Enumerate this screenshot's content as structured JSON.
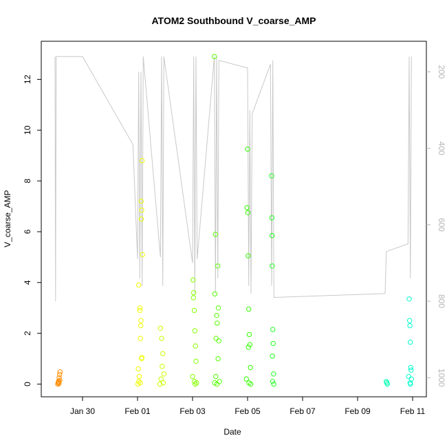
{
  "chart_data": {
    "type": "scatter",
    "title": "ATOM2 Southbound V_coarse_AMP",
    "xlabel": "Date",
    "ylabel": "V_coarse_AMP",
    "x_ticks": [
      "Jan 30",
      "Feb 01",
      "Feb 03",
      "Feb 05",
      "Feb 07",
      "Feb 09",
      "Feb 11"
    ],
    "y_ticks": [
      "0",
      "2",
      "4",
      "6",
      "8",
      "10",
      "12"
    ],
    "y2_ticks": [
      "200",
      "400",
      "600",
      "800",
      "1000"
    ],
    "grid": false,
    "colors": {
      "frame": "#000000",
      "secondary_line": "#c8c8c8",
      "secondary_axis": "#b5b5b5"
    },
    "series": [
      {
        "color": "#ff8c00",
        "points": [
          {
            "x": "2018-01-29T02:24",
            "y": 0.0
          },
          {
            "x": "2018-01-29T02:48",
            "y": 0.05
          },
          {
            "x": "2018-01-29T03:12",
            "y": 0.12
          },
          {
            "x": "2018-01-29T03:36",
            "y": 0.25
          },
          {
            "x": "2018-01-29T04:00",
            "y": 0.38
          },
          {
            "x": "2018-01-29T04:24",
            "y": 0.48
          },
          {
            "x": "2018-01-29T03:00",
            "y": 0.08
          },
          {
            "x": "2018-01-29T03:30",
            "y": 0.02
          },
          {
            "x": "2018-01-29T04:12",
            "y": 0.15
          }
        ]
      },
      {
        "color": "#eeff00",
        "points": [
          {
            "x": "2018-02-01T01:00",
            "y": 3.9
          },
          {
            "x": "2018-02-01T02:00",
            "y": 2.9
          },
          {
            "x": "2018-02-01T03:00",
            "y": 2.5
          },
          {
            "x": "2018-02-01T02:30",
            "y": 1.8
          },
          {
            "x": "2018-02-01T03:30",
            "y": 1.0
          },
          {
            "x": "2018-02-01T04:00",
            "y": 8.8
          },
          {
            "x": "2018-02-01T03:10",
            "y": 7.2
          },
          {
            "x": "2018-02-01T03:40",
            "y": 6.85
          },
          {
            "x": "2018-02-01T03:20",
            "y": 6.5
          },
          {
            "x": "2018-02-01T04:20",
            "y": 5.1
          },
          {
            "x": "2018-02-01T00:40",
            "y": 0.6
          },
          {
            "x": "2018-02-01T01:30",
            "y": 0.3
          },
          {
            "x": "2018-02-01T02:10",
            "y": 3.0
          },
          {
            "x": "2018-02-01T02:50",
            "y": 2.3
          },
          {
            "x": "2018-02-01T03:50",
            "y": 1.05
          },
          {
            "x": "2018-02-01T00:20",
            "y": 0.0
          },
          {
            "x": "2018-02-01T01:10",
            "y": 0.1
          },
          {
            "x": "2018-02-01T02:20",
            "y": 0.05
          }
        ]
      },
      {
        "color": "#c9ff00",
        "points": [
          {
            "x": "2018-02-01T20:00",
            "y": 2.2
          },
          {
            "x": "2018-02-01T21:00",
            "y": 1.8
          },
          {
            "x": "2018-02-01T22:00",
            "y": 1.2
          },
          {
            "x": "2018-02-01T21:30",
            "y": 0.7
          },
          {
            "x": "2018-02-01T20:30",
            "y": 0.2
          },
          {
            "x": "2018-02-01T22:30",
            "y": 0.05
          },
          {
            "x": "2018-02-01T19:30",
            "y": 0.0
          },
          {
            "x": "2018-02-01T23:00",
            "y": 0.4
          }
        ]
      },
      {
        "color": "#88ff00",
        "points": [
          {
            "x": "2018-02-03T00:30",
            "y": 4.1
          },
          {
            "x": "2018-02-03T01:00",
            "y": 3.6
          },
          {
            "x": "2018-02-03T01:30",
            "y": 2.9
          },
          {
            "x": "2018-02-03T02:00",
            "y": 2.1
          },
          {
            "x": "2018-02-03T02:30",
            "y": 1.5
          },
          {
            "x": "2018-02-03T03:00",
            "y": 0.9
          },
          {
            "x": "2018-02-03T00:00",
            "y": 0.3
          },
          {
            "x": "2018-02-03T01:45",
            "y": 0.1
          },
          {
            "x": "2018-02-03T02:15",
            "y": 0.0
          },
          {
            "x": "2018-02-03T03:30",
            "y": 0.05
          },
          {
            "x": "2018-02-03T00:45",
            "y": 3.4
          }
        ]
      },
      {
        "color": "#55ff00",
        "points": [
          {
            "x": "2018-02-03T19:00",
            "y": 12.9
          },
          {
            "x": "2018-02-03T20:00",
            "y": 5.9
          },
          {
            "x": "2018-02-03T22:00",
            "y": 4.65
          },
          {
            "x": "2018-02-03T19:30",
            "y": 3.55
          },
          {
            "x": "2018-02-03T22:30",
            "y": 3.0
          },
          {
            "x": "2018-02-03T21:00",
            "y": 2.7
          },
          {
            "x": "2018-02-03T21:30",
            "y": 2.4
          },
          {
            "x": "2018-02-03T20:30",
            "y": 1.8
          },
          {
            "x": "2018-02-03T23:00",
            "y": 1.7
          },
          {
            "x": "2018-02-03T22:15",
            "y": 1.0
          },
          {
            "x": "2018-02-03T20:15",
            "y": 0.3
          },
          {
            "x": "2018-02-03T21:15",
            "y": 0.0
          },
          {
            "x": "2018-02-03T23:30",
            "y": 0.1
          },
          {
            "x": "2018-02-03T19:15",
            "y": 0.05
          }
        ]
      },
      {
        "color": "#33ff00",
        "points": [
          {
            "x": "2018-02-05T00:00",
            "y": 9.25
          },
          {
            "x": "2018-02-04T23:30",
            "y": 6.95
          },
          {
            "x": "2018-02-05T00:15",
            "y": 6.75
          },
          {
            "x": "2018-02-05T00:30",
            "y": 5.05
          },
          {
            "x": "2018-02-05T01:00",
            "y": 2.95
          },
          {
            "x": "2018-02-05T01:30",
            "y": 1.95
          },
          {
            "x": "2018-02-05T02:00",
            "y": 1.55
          },
          {
            "x": "2018-02-05T00:45",
            "y": 1.45
          },
          {
            "x": "2018-02-05T02:30",
            "y": 0.65
          },
          {
            "x": "2018-02-04T23:00",
            "y": 0.2
          },
          {
            "x": "2018-02-05T01:15",
            "y": 0.05
          },
          {
            "x": "2018-02-05T02:45",
            "y": 0.0
          }
        ]
      },
      {
        "color": "#22ff22",
        "points": [
          {
            "x": "2018-02-05T21:00",
            "y": 8.2
          },
          {
            "x": "2018-02-05T21:10",
            "y": 6.55
          },
          {
            "x": "2018-02-05T21:20",
            "y": 5.85
          },
          {
            "x": "2018-02-05T21:30",
            "y": 4.65
          },
          {
            "x": "2018-02-05T22:00",
            "y": 2.15
          },
          {
            "x": "2018-02-05T22:20",
            "y": 1.6
          },
          {
            "x": "2018-02-05T21:40",
            "y": 1.1
          },
          {
            "x": "2018-02-05T22:40",
            "y": 0.4
          },
          {
            "x": "2018-02-05T21:50",
            "y": 0.1
          },
          {
            "x": "2018-02-05T22:50",
            "y": 0.0
          }
        ]
      },
      {
        "color": "#00ffb3",
        "points": [
          {
            "x": "2018-02-10T01:00",
            "y": 0.1
          },
          {
            "x": "2018-02-10T01:30",
            "y": 0.05
          },
          {
            "x": "2018-02-10T02:00",
            "y": 0.0
          }
        ]
      },
      {
        "color": "#00ffcc",
        "points": [
          {
            "x": "2018-02-10T21:00",
            "y": 3.35
          },
          {
            "x": "2018-02-10T21:20",
            "y": 2.5
          },
          {
            "x": "2018-02-10T21:40",
            "y": 2.3
          },
          {
            "x": "2018-02-10T22:00",
            "y": 1.65
          },
          {
            "x": "2018-02-10T22:20",
            "y": 0.65
          },
          {
            "x": "2018-02-10T22:40",
            "y": 0.55
          },
          {
            "x": "2018-02-10T20:30",
            "y": 0.3
          },
          {
            "x": "2018-02-10T23:00",
            "y": 0.2
          },
          {
            "x": "2018-02-10T21:50",
            "y": 0.05
          },
          {
            "x": "2018-02-10T22:10",
            "y": 0.0
          }
        ]
      }
    ],
    "secondary_series": {
      "color": "#c8c8c8",
      "points": [
        {
          "x": "2018-01-29T00:00",
          "y": 160
        },
        {
          "x": "2018-01-29T00:30",
          "y": 800
        },
        {
          "x": "2018-01-29T01:00",
          "y": 160
        },
        {
          "x": "2018-01-30T00:00",
          "y": 160
        },
        {
          "x": "2018-01-31T20:00",
          "y": 390
        },
        {
          "x": "2018-02-01T00:00",
          "y": 690
        },
        {
          "x": "2018-02-01T01:00",
          "y": 200
        },
        {
          "x": "2018-02-01T02:00",
          "y": 740
        },
        {
          "x": "2018-02-01T03:00",
          "y": 200
        },
        {
          "x": "2018-02-01T04:00",
          "y": 760
        },
        {
          "x": "2018-02-01T05:00",
          "y": 160
        },
        {
          "x": "2018-02-01T20:00",
          "y": 685
        },
        {
          "x": "2018-02-01T21:00",
          "y": 160
        },
        {
          "x": "2018-02-01T22:00",
          "y": 760
        },
        {
          "x": "2018-02-01T23:00",
          "y": 160
        },
        {
          "x": "2018-02-03T00:00",
          "y": 700
        },
        {
          "x": "2018-02-03T01:00",
          "y": 160
        },
        {
          "x": "2018-02-03T02:00",
          "y": 780
        },
        {
          "x": "2018-02-03T03:00",
          "y": 160
        },
        {
          "x": "2018-02-03T04:00",
          "y": 690
        },
        {
          "x": "2018-02-03T19:00",
          "y": 160
        },
        {
          "x": "2018-02-03T20:00",
          "y": 780
        },
        {
          "x": "2018-02-03T21:00",
          "y": 160
        },
        {
          "x": "2018-02-03T22:00",
          "y": 740
        },
        {
          "x": "2018-02-03T23:00",
          "y": 170
        },
        {
          "x": "2018-02-05T00:00",
          "y": 190
        },
        {
          "x": "2018-02-05T01:00",
          "y": 760
        },
        {
          "x": "2018-02-05T02:00",
          "y": 300
        },
        {
          "x": "2018-02-05T03:00",
          "y": 780
        },
        {
          "x": "2018-02-05T04:00",
          "y": 310
        },
        {
          "x": "2018-02-05T20:00",
          "y": 180
        },
        {
          "x": "2018-02-05T21:00",
          "y": 760
        },
        {
          "x": "2018-02-05T22:00",
          "y": 170
        },
        {
          "x": "2018-02-05T23:00",
          "y": 790
        },
        {
          "x": "2018-02-10T00:00",
          "y": 780
        },
        {
          "x": "2018-02-10T01:00",
          "y": 670
        },
        {
          "x": "2018-02-10T20:00",
          "y": 650
        },
        {
          "x": "2018-02-10T21:00",
          "y": 160
        },
        {
          "x": "2018-02-10T22:00",
          "y": 740
        },
        {
          "x": "2018-02-10T23:00",
          "y": 160
        }
      ]
    },
    "xlim": [
      "2018-01-28T12:00",
      "2018-02-11T12:00"
    ],
    "ylim": [
      -0.5,
      13.5
    ],
    "y2lim": [
      1050,
      120
    ]
  }
}
